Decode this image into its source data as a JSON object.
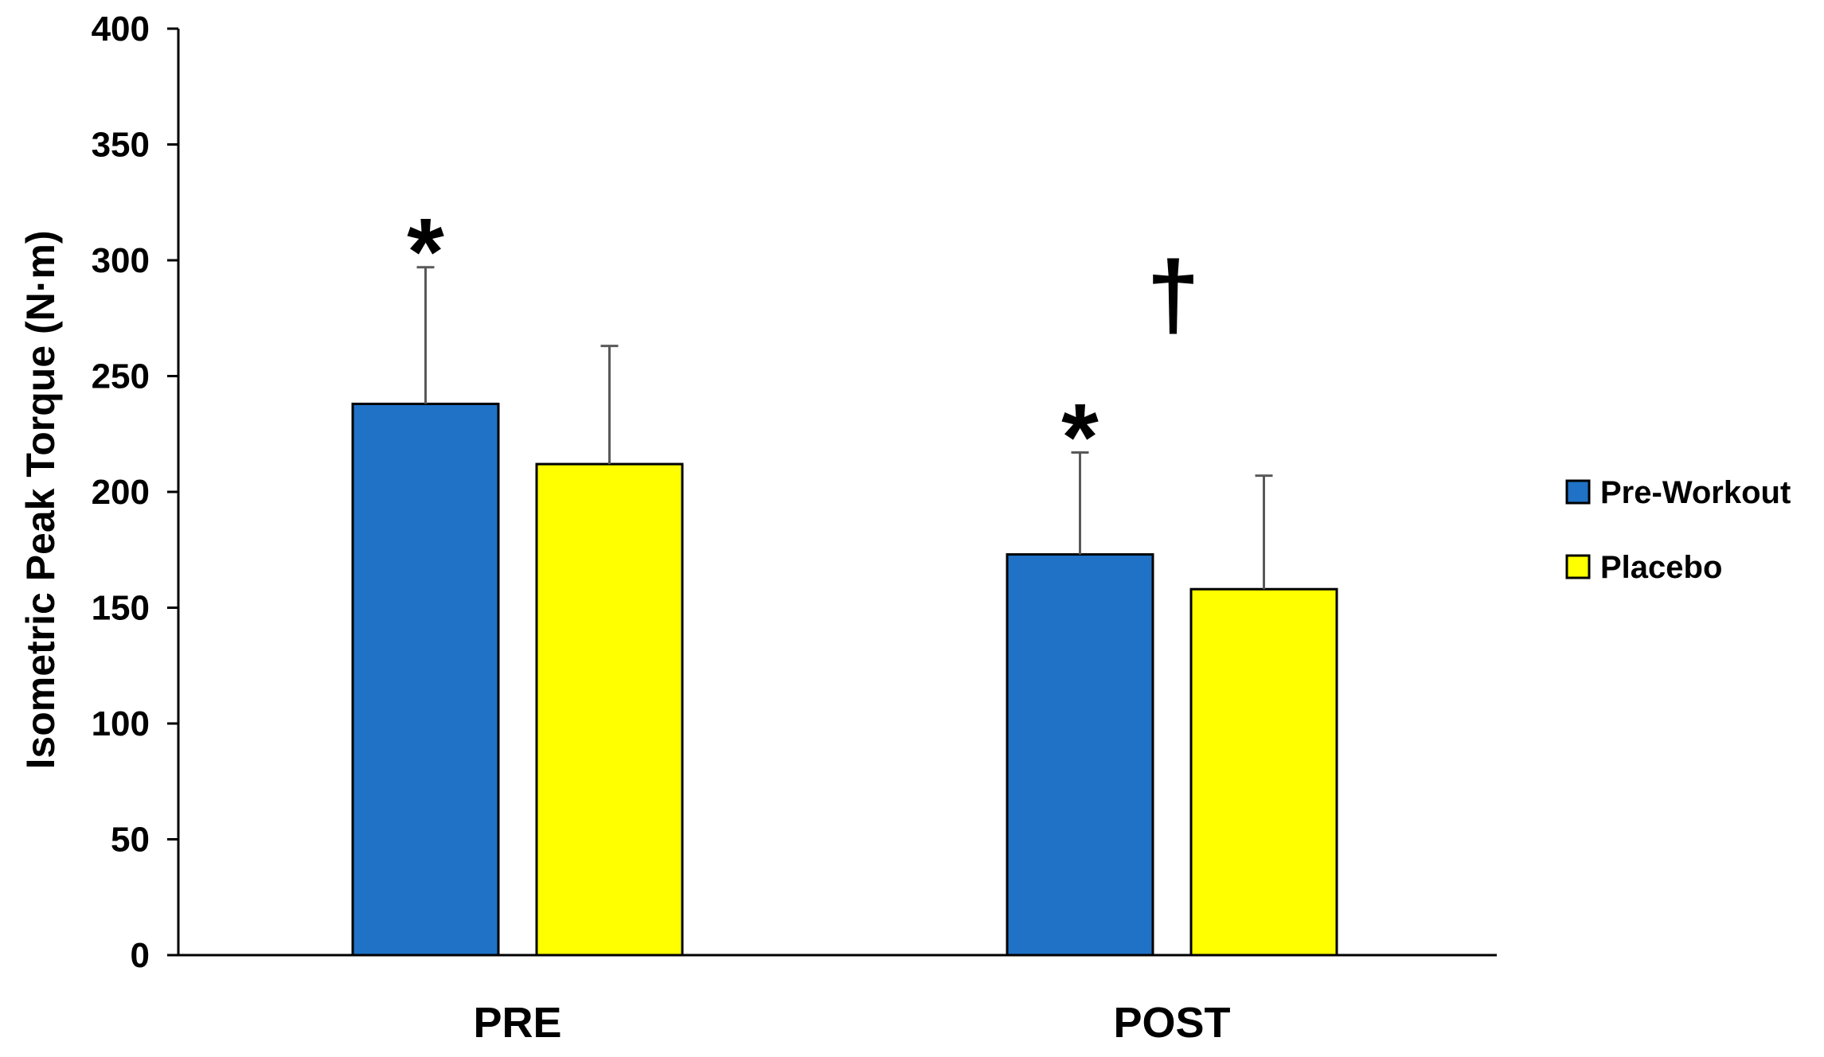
{
  "chart_data": {
    "type": "bar",
    "categories": [
      "PRE",
      "POST"
    ],
    "series": [
      {
        "name": "Pre-Workout",
        "color": "#1f72c6",
        "values": [
          238,
          173
        ],
        "errors": [
          59,
          44
        ]
      },
      {
        "name": "Placebo",
        "color": "#ffff00",
        "values": [
          212,
          158
        ],
        "errors": [
          51,
          49
        ]
      }
    ],
    "ylabel": "Isometric Peak Torque (N·m)",
    "xlabel": "",
    "ylim": [
      0,
      400
    ],
    "yticks": [
      0,
      50,
      100,
      150,
      200,
      250,
      300,
      350,
      400
    ],
    "grid": false,
    "legend_position": "right",
    "annotations": [
      {
        "text": "*",
        "category": "PRE",
        "series": "Pre-Workout"
      },
      {
        "text": "*",
        "category": "POST",
        "series": "Pre-Workout"
      },
      {
        "text": "†",
        "category": "POST",
        "series": "Pre-Workout"
      }
    ]
  }
}
